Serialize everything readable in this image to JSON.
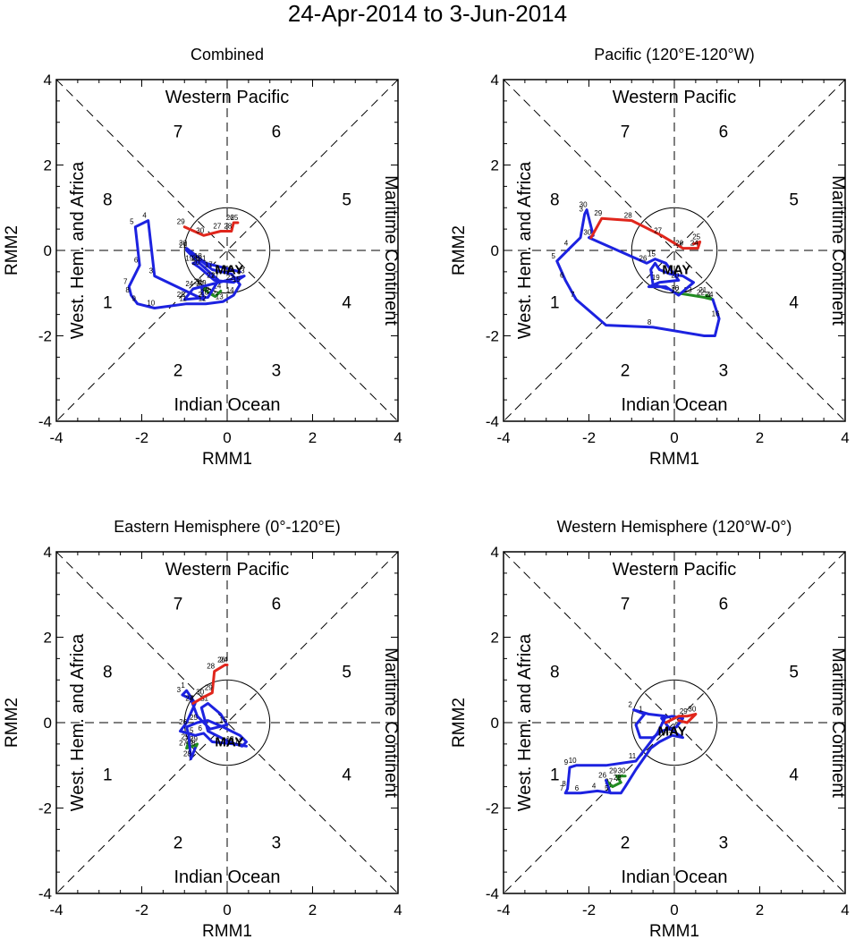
{
  "title": "24-Apr-2014 to 3-Jun-2014",
  "axes": {
    "xlabel": "RMM1",
    "ylabel": "RMM2",
    "xlim": [
      -4,
      4
    ],
    "ylim": [
      -4,
      4
    ],
    "ticks": [
      "-4",
      "-2",
      "0",
      "2",
      "4"
    ],
    "tick_values": [
      -4,
      -2,
      0,
      2,
      4
    ]
  },
  "regions": {
    "top": "Western Pacific",
    "bottom": "Indian Ocean",
    "left": "West. Hem. and Africa",
    "right": "Maritime Continent"
  },
  "phases": [
    "1",
    "2",
    "3",
    "4",
    "5",
    "6",
    "7",
    "8"
  ],
  "month_label": "MAY",
  "colors": {
    "April": "#228b22",
    "May": "#1c22e0",
    "June": "#e0261c",
    "frame": "#000000"
  },
  "chart_data": [
    {
      "type": "line",
      "title": "Combined",
      "xlabel": "RMM1",
      "ylabel": "RMM2",
      "xlim": [
        -4,
        4
      ],
      "ylim": [
        -4,
        4
      ],
      "series": [
        {
          "name": "April",
          "color": "#228b22",
          "points": [
            [
              -0.15,
              -0.95
            ],
            [
              -0.28,
              -1.08
            ],
            [
              -0.42,
              -1.0
            ],
            [
              -0.55,
              -0.9
            ],
            [
              -0.6,
              -0.85
            ],
            [
              -0.5,
              -0.88
            ]
          ],
          "labels": [
            "24",
            "25",
            "26",
            "27",
            "28",
            "29"
          ]
        },
        {
          "name": "May",
          "color": "#1c22e0",
          "points": [
            [
              -0.6,
              -0.85
            ],
            [
              -0.55,
              -1.15
            ],
            [
              -1.7,
              -0.6
            ],
            [
              -1.85,
              0.7
            ],
            [
              -2.15,
              0.55
            ],
            [
              -2.05,
              -0.35
            ],
            [
              -2.3,
              -0.85
            ],
            [
              -2.25,
              -1.05
            ],
            [
              -2.1,
              -1.25
            ],
            [
              -1.7,
              -1.35
            ],
            [
              -0.95,
              -1.25
            ],
            [
              -0.5,
              -1.25
            ],
            [
              -0.1,
              -1.2
            ],
            [
              0.15,
              -1.05
            ],
            [
              0.3,
              -0.8
            ],
            [
              0.1,
              -0.55
            ],
            [
              -0.35,
              -0.45
            ],
            [
              -0.6,
              -0.25
            ],
            [
              -0.8,
              -0.3
            ],
            [
              -0.65,
              -0.4
            ],
            [
              -0.3,
              -0.7
            ],
            [
              0.15,
              -0.75
            ],
            [
              0.4,
              -0.6
            ],
            [
              -0.8,
              -0.9
            ],
            [
              -1.0,
              -1.15
            ],
            [
              -0.45,
              -1.1
            ],
            [
              -0.2,
              -0.7
            ],
            [
              -0.65,
              -0.3
            ],
            [
              -0.95,
              0.0
            ],
            [
              -0.95,
              0.05
            ],
            [
              -0.5,
              -0.3
            ],
            [
              0.3,
              -0.5
            ]
          ],
          "labels": [
            "1",
            "2",
            "3",
            "4",
            "5",
            "6",
            "7",
            "8",
            "9",
            "10",
            "11",
            "12",
            "13",
            "14",
            "15",
            "16",
            "17",
            "18",
            "19",
            "20",
            "21",
            "22",
            "23",
            "24",
            "25",
            "26",
            "27",
            "28",
            "29",
            "30",
            "31"
          ]
        },
        {
          "name": "June",
          "color": "#e0261c",
          "points": [
            [
              -1.0,
              0.55
            ],
            [
              -0.55,
              0.35
            ],
            [
              -0.15,
              0.45
            ],
            [
              0.1,
              0.45
            ],
            [
              0.15,
              0.65
            ],
            [
              0.25,
              0.65
            ]
          ],
          "labels": [
            "29",
            "30",
            "27",
            "28",
            "26",
            "25"
          ]
        }
      ]
    },
    {
      "type": "line",
      "title": "Pacific (120°E-120°W)",
      "xlabel": "RMM1",
      "ylabel": "RMM2",
      "xlim": [
        -4,
        4
      ],
      "ylim": [
        -4,
        4
      ],
      "series": [
        {
          "name": "April",
          "color": "#228b22",
          "points": [
            [
              0.1,
              -1.0
            ],
            [
              0.4,
              -1.05
            ],
            [
              0.7,
              -1.1
            ],
            [
              0.9,
              -1.15
            ],
            [
              0.75,
              -1.05
            ]
          ],
          "labels": [
            "30",
            "23",
            "22",
            "24",
            "21"
          ]
        },
        {
          "name": "May",
          "color": "#1c22e0",
          "points": [
            [
              0.9,
              -1.15
            ],
            [
              1.05,
              -1.6
            ],
            [
              0.95,
              -2.0
            ],
            [
              0.7,
              -2.0
            ],
            [
              -0.5,
              -1.8
            ],
            [
              -1.6,
              -1.75
            ],
            [
              -2.3,
              -1.15
            ],
            [
              -2.55,
              -0.7
            ],
            [
              -2.75,
              -0.25
            ],
            [
              -2.45,
              0.05
            ],
            [
              -2.2,
              0.3
            ],
            [
              -2.1,
              0.85
            ],
            [
              -2.05,
              0.95
            ],
            [
              -1.9,
              0.35
            ],
            [
              -2.0,
              0.3
            ],
            [
              -0.65,
              -0.3
            ],
            [
              -0.45,
              -0.2
            ],
            [
              -0.2,
              -0.3
            ],
            [
              0.1,
              -0.7
            ],
            [
              -0.35,
              -0.75
            ],
            [
              -0.6,
              -0.85
            ],
            [
              -0.2,
              -0.85
            ],
            [
              0.1,
              -1.05
            ],
            [
              0.45,
              -0.75
            ],
            [
              0.2,
              -0.6
            ],
            [
              -0.1,
              -0.55
            ],
            [
              -0.35,
              -0.45
            ],
            [
              -0.45,
              -0.3
            ],
            [
              -0.55,
              -0.45
            ],
            [
              -0.5,
              -0.8
            ],
            [
              -0.15,
              -0.9
            ]
          ],
          "labels": [
            "1",
            "16",
            "",
            "",
            "8",
            "",
            "7",
            "6",
            "5",
            "4",
            "",
            "3",
            "30",
            "",
            "",
            "26",
            "15",
            "",
            "20",
            "19",
            "",
            "",
            "12",
            "",
            "",
            "",
            "",
            "",
            "",
            "",
            ""
          ]
        },
        {
          "name": "June",
          "color": "#e0261c",
          "points": [
            [
              -1.95,
              0.3
            ],
            [
              -1.7,
              0.75
            ],
            [
              -1.0,
              0.7
            ],
            [
              -0.3,
              0.35
            ],
            [
              0.2,
              0.05
            ],
            [
              0.55,
              0.05
            ],
            [
              0.6,
              0.2
            ],
            [
              0.45,
              0.15
            ]
          ],
          "labels": [
            "30",
            "29",
            "28",
            "27",
            "26",
            "24",
            "25",
            ""
          ]
        }
      ]
    },
    {
      "type": "line",
      "title": "Eastern Hemisphere (0°-120°E)",
      "xlabel": "RMM1",
      "ylabel": "RMM2",
      "xlim": [
        -4,
        4
      ],
      "ylim": [
        -4,
        4
      ],
      "series": [
        {
          "name": "April",
          "color": "#228b22",
          "points": [
            [
              -0.9,
              -0.45
            ],
            [
              -0.95,
              -0.6
            ],
            [
              -0.8,
              -0.55
            ],
            [
              -0.7,
              -0.5
            ],
            [
              -0.75,
              -0.6
            ]
          ],
          "labels": [
            "25",
            "27",
            "26",
            "29",
            "28"
          ]
        },
        {
          "name": "May",
          "color": "#1c22e0",
          "points": [
            [
              -0.75,
              -0.6
            ],
            [
              -0.85,
              -0.85
            ],
            [
              -0.9,
              -0.3
            ],
            [
              -0.95,
              -0.1
            ],
            [
              -0.7,
              0.0
            ],
            [
              -0.45,
              0.05
            ],
            [
              -0.1,
              -0.1
            ],
            [
              0.3,
              -0.3
            ],
            [
              0.45,
              -0.45
            ],
            [
              0.35,
              -0.55
            ],
            [
              0.05,
              -0.45
            ],
            [
              -0.45,
              -0.2
            ],
            [
              -0.6,
              0.35
            ],
            [
              -0.45,
              0.45
            ],
            [
              -0.15,
              0.2
            ],
            [
              0.0,
              -0.05
            ],
            [
              -0.4,
              -0.15
            ],
            [
              -0.7,
              0.15
            ],
            [
              -0.85,
              0.55
            ],
            [
              -1.05,
              0.65
            ],
            [
              -0.95,
              0.75
            ],
            [
              -0.75,
              0.45
            ],
            [
              -0.95,
              0.0
            ],
            [
              -1.1,
              -0.2
            ],
            [
              -0.75,
              -0.3
            ],
            [
              -0.55,
              -0.25
            ],
            [
              -0.35,
              -0.45
            ],
            [
              0.15,
              -0.5
            ],
            [
              0.45,
              -0.55
            ]
          ],
          "labels": [
            "",
            "28",
            "",
            "26",
            "25",
            "",
            "",
            "",
            "",
            "12",
            "",
            "",
            "",
            "21",
            "",
            "15",
            "",
            "",
            "",
            "3",
            "1",
            "4",
            "",
            "",
            "5",
            "6",
            "",
            "18",
            ""
          ]
        },
        {
          "name": "June",
          "color": "#e0261c",
          "points": [
            [
              -0.8,
              0.45
            ],
            [
              -0.55,
              0.6
            ],
            [
              -0.35,
              0.7
            ],
            [
              -0.3,
              1.2
            ],
            [
              -0.05,
              1.35
            ],
            [
              0.0,
              1.35
            ]
          ],
          "labels": [
            "27",
            "30",
            "29",
            "28",
            "26",
            "24"
          ]
        }
      ]
    },
    {
      "type": "line",
      "title": "Western Hemisphere (120°W-0°)",
      "xlabel": "RMM1",
      "ylabel": "RMM2",
      "xlim": [
        -4,
        4
      ],
      "ylim": [
        -4,
        4
      ],
      "series": [
        {
          "name": "April",
          "color": "#228b22",
          "points": [
            [
              -1.15,
              -1.25
            ],
            [
              -1.35,
              -1.25
            ],
            [
              -1.25,
              -1.4
            ],
            [
              -1.45,
              -1.5
            ],
            [
              -1.6,
              -1.35
            ]
          ],
          "labels": [
            "30",
            "29",
            "28",
            "27",
            "26"
          ]
        },
        {
          "name": "May",
          "color": "#1c22e0",
          "points": [
            [
              -1.6,
              -1.35
            ],
            [
              -1.5,
              -1.65
            ],
            [
              -1.25,
              -1.65
            ],
            [
              -1.15,
              -1.5
            ],
            [
              -0.9,
              -1.1
            ],
            [
              -0.55,
              -0.6
            ],
            [
              -0.35,
              -0.45
            ],
            [
              -0.05,
              -0.3
            ],
            [
              0.2,
              -0.35
            ],
            [
              -0.1,
              -0.15
            ],
            [
              -0.3,
              0.1
            ],
            [
              -0.05,
              0.15
            ],
            [
              0.2,
              0.1
            ],
            [
              0.05,
              -0.1
            ],
            [
              -0.3,
              -0.2
            ],
            [
              -0.5,
              -0.35
            ],
            [
              -0.8,
              -0.35
            ],
            [
              -0.9,
              -0.05
            ],
            [
              -0.7,
              0.2
            ],
            [
              -0.95,
              0.3
            ],
            [
              -0.6,
              0.2
            ],
            [
              -0.2,
              0.15
            ],
            [
              -0.4,
              -0.25
            ],
            [
              -0.9,
              -0.9
            ],
            [
              -1.6,
              -1.0
            ],
            [
              -2.3,
              -1.0
            ],
            [
              -2.45,
              -1.05
            ],
            [
              -2.5,
              -1.55
            ],
            [
              -2.55,
              -1.65
            ],
            [
              -2.2,
              -1.65
            ],
            [
              -1.8,
              -1.6
            ],
            [
              -1.45,
              -1.65
            ]
          ],
          "labels": [
            "",
            "5",
            "",
            "",
            "",
            "",
            "",
            "15",
            "",
            "",
            "",
            "",
            "",
            "",
            "",
            "",
            "",
            "",
            "1",
            "2",
            "",
            "",
            "",
            "11",
            "",
            "10",
            "9",
            "8",
            "7",
            "6",
            "4",
            ""
          ]
        },
        {
          "name": "June",
          "color": "#e0261c",
          "points": [
            [
              -0.2,
              0.0
            ],
            [
              0.1,
              0.15
            ],
            [
              0.3,
              0.15
            ],
            [
              0.5,
              0.2
            ],
            [
              0.3,
              0.0
            ],
            [
              0.1,
              0.05
            ]
          ],
          "labels": [
            "",
            "",
            "29",
            "30",
            "",
            ""
          ]
        }
      ]
    }
  ]
}
